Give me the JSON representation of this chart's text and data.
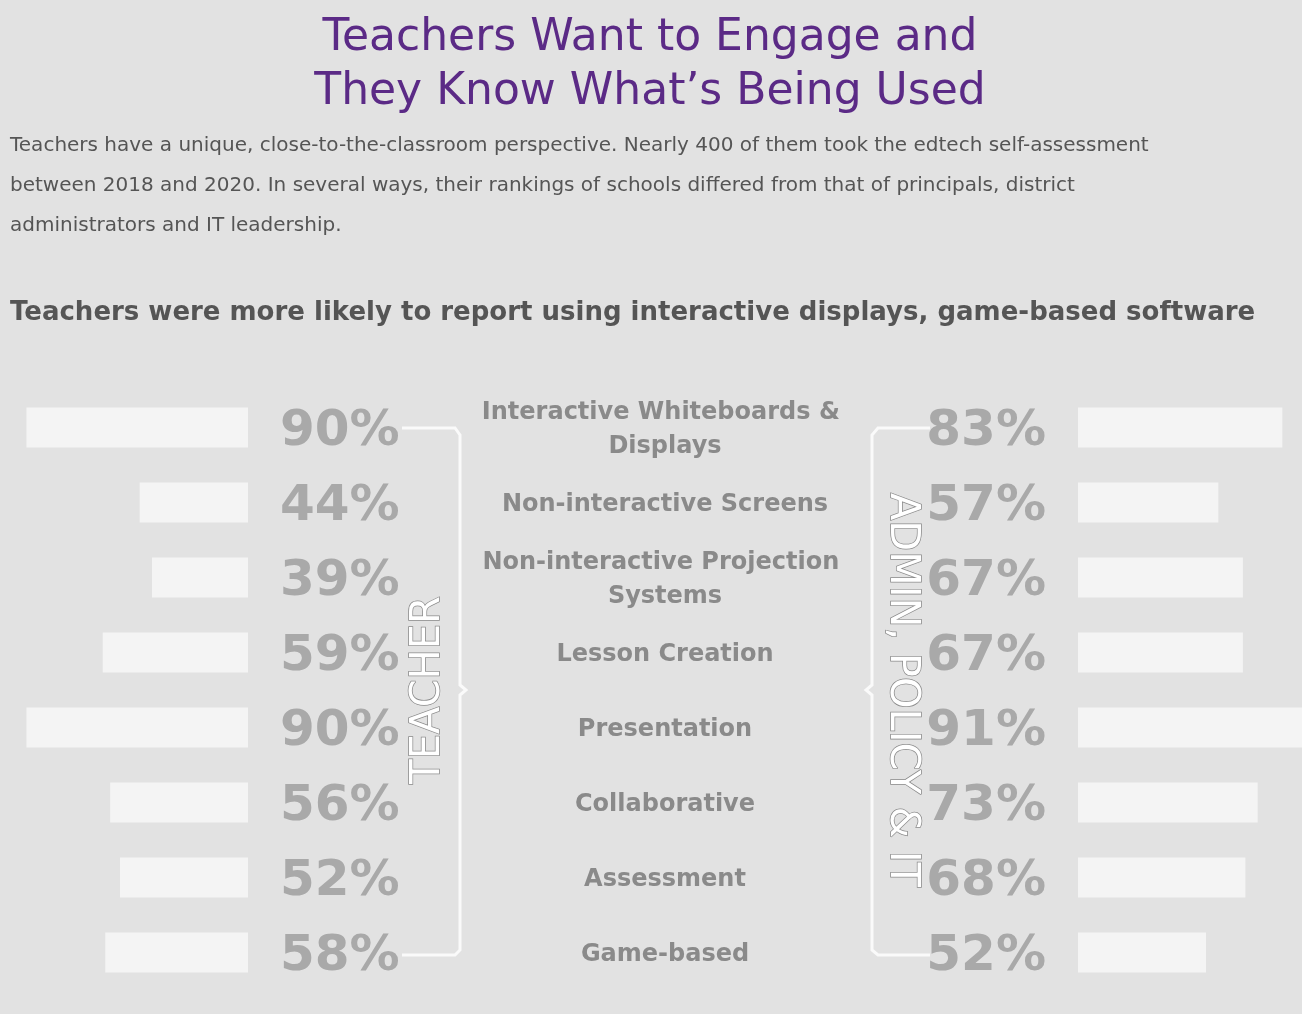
{
  "chart_data": [
    {
      "type": "bar",
      "orientation": "horizontal",
      "title": "Teachers Want to Engage and They Know What’s Being Used",
      "subtitle": "Teachers have a unique, close-to-the-classroom perspective. Nearly 400 of them took the edtech self-assessment between 2018 and 2020. In several ways, their rankings of schools differed from that of principals, district administrators and IT leadership.",
      "annotations": [
        "Teachers were more likely to report using interactive displays, game-based software"
      ],
      "categories": [
        "Interactive Whiteboards & Displays",
        "Non-interactive Screens",
        "Non-interactive Projection Systems",
        "Lesson Creation",
        "Presentation",
        "Collaborative",
        "Assessment",
        "Game-based"
      ],
      "series": [
        {
          "name": "TEACHER",
          "color": "#f4f4f4",
          "values": [
            90,
            44,
            39,
            59,
            90,
            56,
            52,
            58
          ],
          "value_labels": [
            "90%",
            "44%",
            "39%",
            "59%",
            "90%",
            "56%",
            "52%",
            "58%"
          ]
        }
      ],
      "legend": false
    },
    {
      "type": "bar",
      "orientation": "horizontal",
      "categories": [
        "Interactive Whiteboards & Displays",
        "Non-interactive Screens",
        "Non-interactive Projection Systems",
        "Lesson Creation",
        "Presentation",
        "Collaborative",
        "Assessment",
        "Game-based"
      ],
      "series": [
        {
          "name": "ADMIN, POLICY & IT",
          "color": "#f4f4f4",
          "values": [
            83,
            57,
            67,
            67,
            91,
            73,
            68,
            52
          ],
          "value_labels": [
            "83%",
            "57%",
            "67%",
            "67%",
            "91%",
            "73%",
            "68%",
            "52%"
          ]
        }
      ],
      "tick_labels": false,
      "legend": false
    }
  ]
}
